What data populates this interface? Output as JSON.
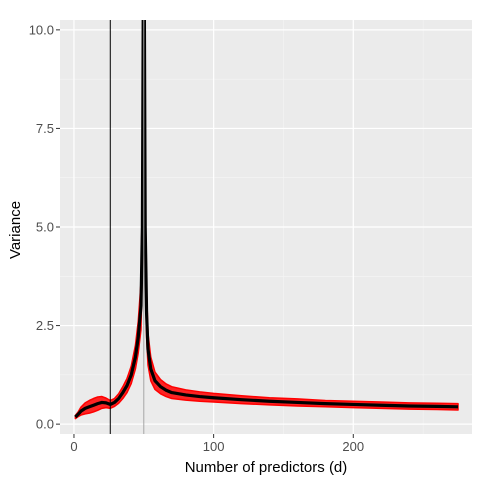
{
  "chart_data": {
    "type": "line",
    "title": "",
    "xlabel": "Number of predictors (d)",
    "ylabel": "Variance",
    "xlim": [
      -10,
      285
    ],
    "ylim": [
      -0.25,
      10.25
    ],
    "x_ticks": [
      0,
      100,
      200
    ],
    "y_ticks": [
      0.0,
      2.5,
      5.0,
      7.5,
      10.0
    ],
    "y_tick_labels": [
      "0.0",
      "2.5",
      "5.0",
      "7.5",
      "10.0"
    ],
    "grid": true,
    "legend": "none",
    "vlines": [
      {
        "x": 26,
        "color": "#000000"
      },
      {
        "x": 50,
        "color": "#a6a6a6"
      }
    ],
    "series": [
      {
        "color": "#000000",
        "band_color": "#ff0000",
        "x": [
          1,
          3,
          5,
          8,
          11,
          14,
          17,
          20,
          23,
          26,
          29,
          32,
          35,
          38,
          41,
          44,
          46,
          48,
          49,
          49.6,
          50.4,
          51,
          52,
          53,
          55,
          58,
          62,
          66,
          70,
          80,
          90,
          100,
          120,
          140,
          160,
          180,
          200,
          220,
          240,
          260,
          275
        ],
        "y": [
          0.18,
          0.25,
          0.33,
          0.4,
          0.44,
          0.48,
          0.52,
          0.55,
          0.54,
          0.5,
          0.55,
          0.65,
          0.8,
          0.98,
          1.25,
          1.7,
          2.2,
          3.0,
          5.0,
          10.5,
          10.5,
          5.0,
          2.8,
          1.9,
          1.4,
          1.1,
          0.95,
          0.86,
          0.8,
          0.74,
          0.7,
          0.67,
          0.62,
          0.58,
          0.55,
          0.52,
          0.5,
          0.48,
          0.46,
          0.45,
          0.44
        ],
        "band_halfwidth": [
          0.04,
          0.06,
          0.1,
          0.14,
          0.16,
          0.17,
          0.17,
          0.15,
          0.12,
          0.1,
          0.1,
          0.12,
          0.15,
          0.18,
          0.22,
          0.3,
          0.4,
          0.6,
          0.9,
          1.2,
          1.2,
          0.9,
          0.6,
          0.4,
          0.3,
          0.22,
          0.18,
          0.16,
          0.15,
          0.13,
          0.12,
          0.11,
          0.1,
          0.09,
          0.09,
          0.08,
          0.08,
          0.08,
          0.08,
          0.08,
          0.08
        ]
      }
    ]
  }
}
